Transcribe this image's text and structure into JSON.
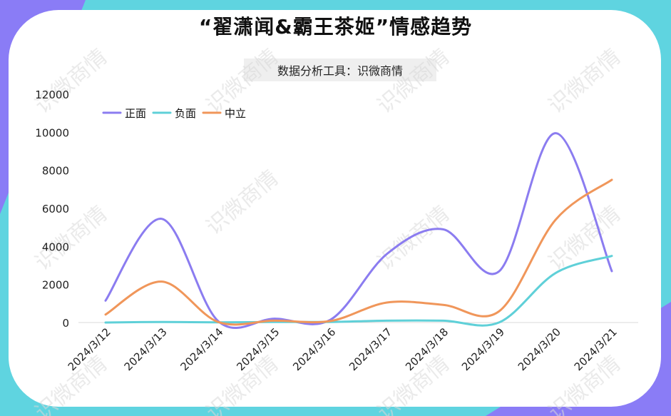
{
  "header": {
    "title": "“翟潇闻&霸王茶姬”情感趋势",
    "subtitle": "数据分析工具：识微商情"
  },
  "watermark": {
    "text": "识微商情"
  },
  "colors": {
    "positive": "#8b7cf0",
    "negative": "#5fd0d8",
    "neutral": "#f0965a"
  },
  "chart_data": {
    "type": "line",
    "title": "“翟潇闻&霸王茶姬”情感趋势",
    "categories": [
      "2024/3/12",
      "2024/3/13",
      "2024/3/14",
      "2024/3/15",
      "2024/3/16",
      "2024/3/17",
      "2024/3/18",
      "2024/3/19",
      "2024/3/20",
      "2024/3/21"
    ],
    "series": [
      {
        "name": "正面",
        "color": "#8b7cf0",
        "values": [
          1150,
          5450,
          80,
          200,
          150,
          3600,
          4900,
          2700,
          9950,
          2700
        ]
      },
      {
        "name": "负面",
        "color": "#5fd0d8",
        "values": [
          0,
          30,
          10,
          30,
          30,
          100,
          100,
          10,
          2600,
          3500
        ]
      },
      {
        "name": "中立",
        "color": "#f0965a",
        "values": [
          420,
          2150,
          30,
          100,
          80,
          1050,
          930,
          600,
          5400,
          7500
        ]
      }
    ],
    "yticks": [
      "0",
      "2000",
      "4000",
      "6000",
      "8000",
      "10000",
      "12000"
    ],
    "ylim": [
      0,
      12000
    ],
    "legend_position": "top-left",
    "smooth": true
  }
}
